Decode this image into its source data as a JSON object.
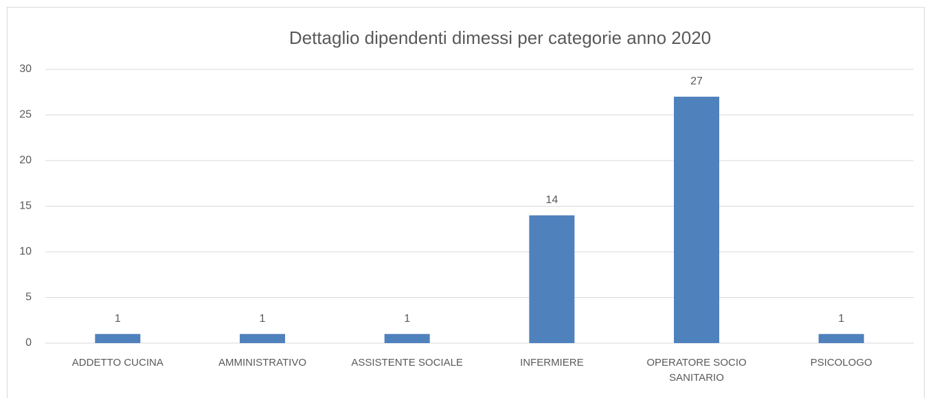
{
  "chart_data": {
    "type": "bar",
    "title": "Dettaglio dipendenti dimessi per categorie anno 2020",
    "categories": [
      "ADDETTO CUCINA",
      "AMMINISTRATIVO",
      "ASSISTENTE SOCIALE",
      "INFERMIERE",
      "OPERATORE SOCIO SANITARIO",
      "PSICOLOGO"
    ],
    "values": [
      1,
      1,
      1,
      14,
      27,
      1
    ],
    "color": "#4f81bd",
    "ylim": [
      0,
      30
    ],
    "yticks": [
      0,
      5,
      10,
      15,
      20,
      25,
      30
    ],
    "grid": true
  }
}
